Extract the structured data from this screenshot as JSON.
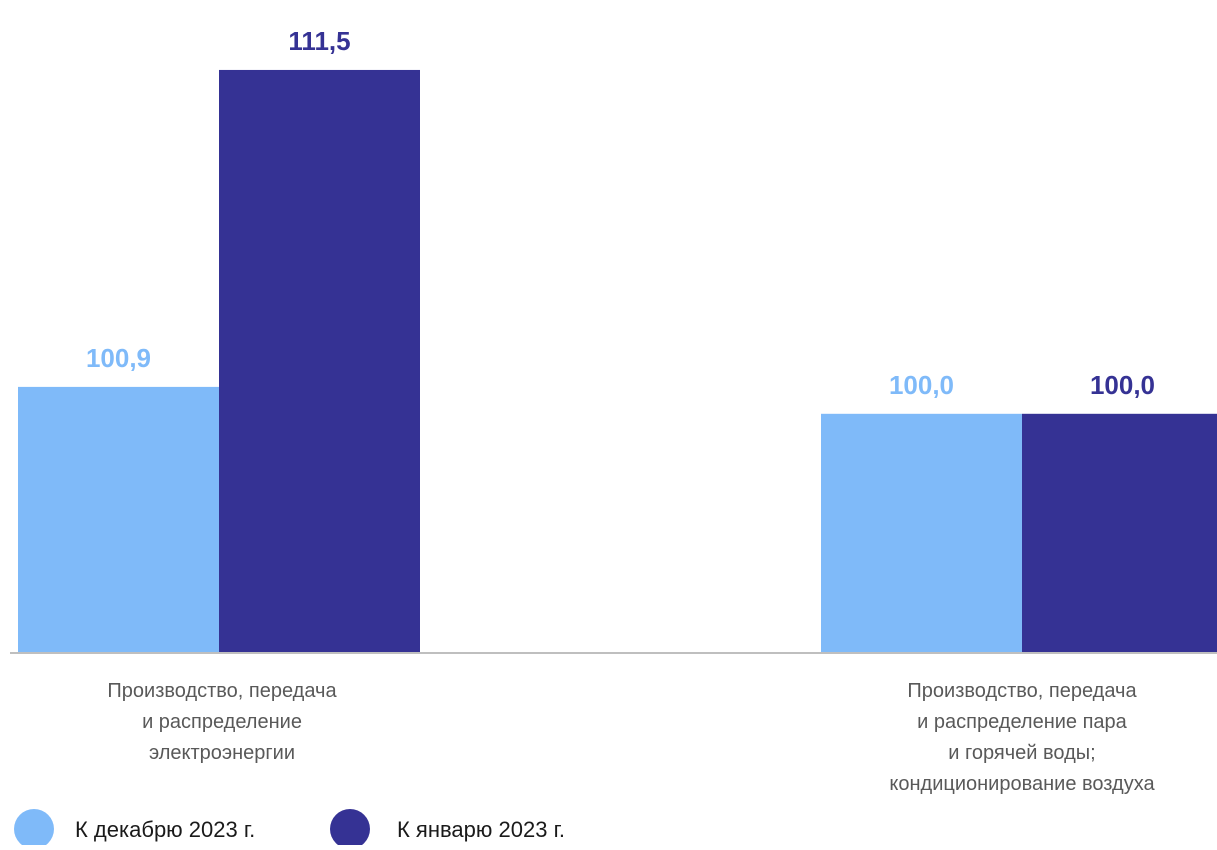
{
  "chart_data": {
    "type": "bar",
    "categories": [
      [
        "Производство, передача",
        "и распределение",
        "электроэнергии"
      ],
      [
        "Производство,  передача",
        "и  распределение пара",
        "и горячей воды;",
        "кондиционирование воздуха"
      ]
    ],
    "series": [
      {
        "name": "К декабрю 2023 г.",
        "color": "#7FBAF9",
        "values": [
          100.9,
          100.0
        ],
        "labels": [
          "100,9",
          "100,0"
        ]
      },
      {
        "name": "К январю 2023 г.",
        "color": "#353294",
        "values": [
          111.5,
          100.0
        ],
        "labels": [
          "111,5",
          "100,0"
        ]
      }
    ],
    "ylim": [
      92.0,
      112.0
    ],
    "grid": false,
    "legend_position": "bottom-left",
    "axis_color": "#BFBFBF"
  }
}
